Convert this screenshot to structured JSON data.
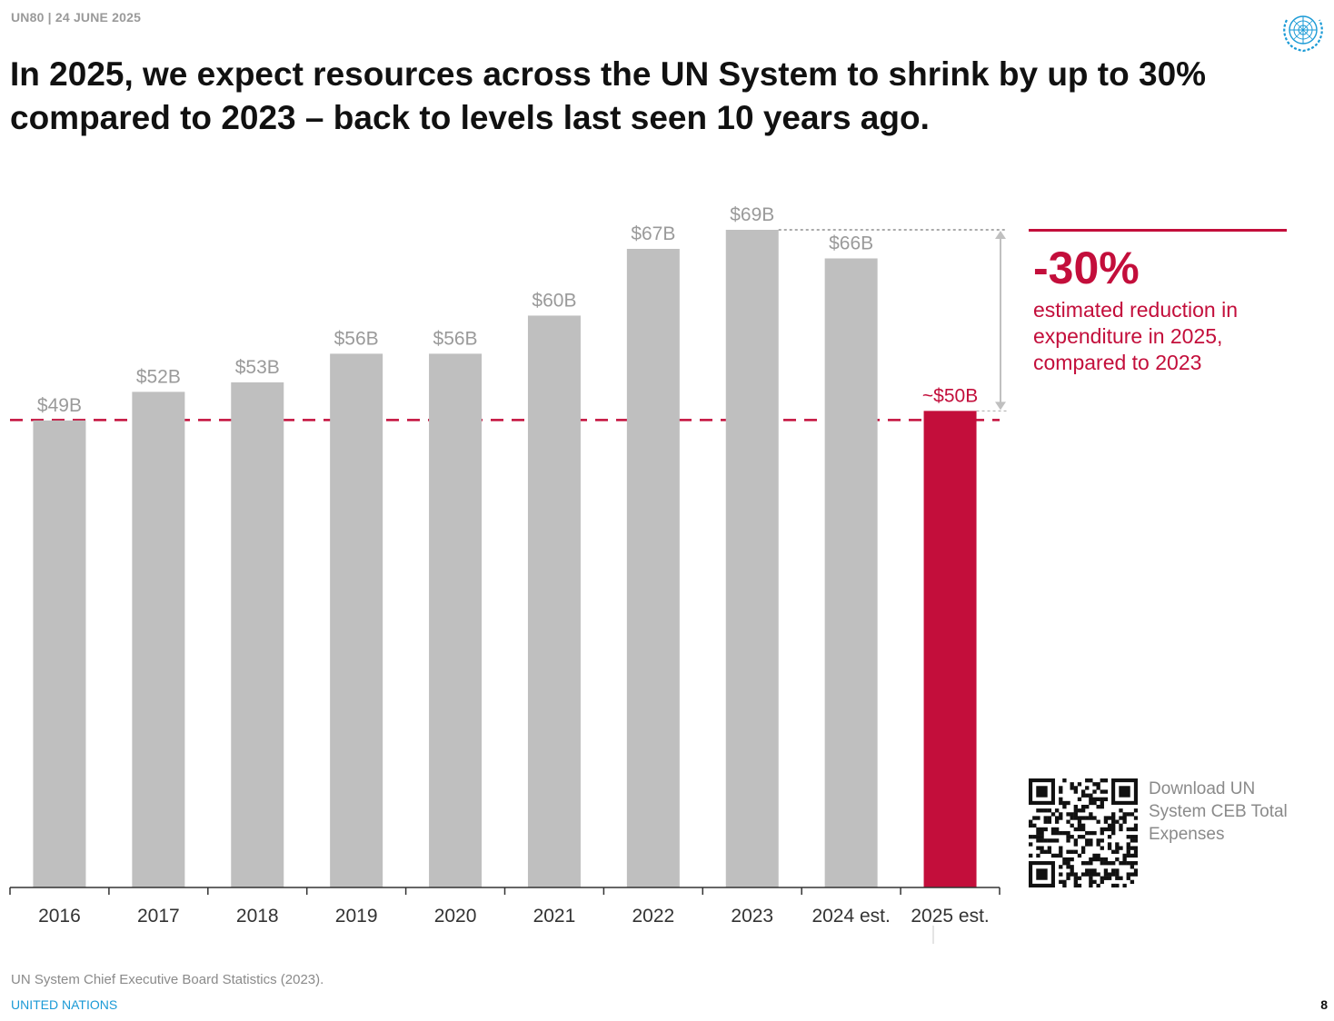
{
  "header": {
    "tag": "UN80 | 24 JUNE 2025"
  },
  "title": "In 2025, we expect resources across the UN System to shrink by up to 30% compared to 2023 – back to levels last seen 10 years ago.",
  "chart_data": {
    "type": "bar",
    "title": "",
    "xlabel": "",
    "ylabel": "",
    "categories": [
      "2016",
      "2017",
      "2018",
      "2019",
      "2020",
      "2021",
      "2022",
      "2023",
      "2024 est.",
      "2025 est."
    ],
    "values": [
      49,
      52,
      53,
      56,
      56,
      60,
      67,
      69,
      66,
      50
    ],
    "value_labels": [
      "$49B",
      "$52B",
      "$53B",
      "$56B",
      "$56B",
      "$60B",
      "$67B",
      "$69B",
      "$66B",
      "~$50B"
    ],
    "unit": "USD billions",
    "highlight_index": 9,
    "reference_line_value": 50,
    "ylim": [
      0,
      69
    ],
    "grid": false,
    "colors": {
      "bar": "#bfbfbf",
      "highlight": "#c30e3b",
      "label": "#9a9a9a",
      "axis": "#333333"
    }
  },
  "callout": {
    "value": "-30%",
    "text": "estimated reduction in expenditure in 2025, compared to 2023",
    "color": "#c30e3b"
  },
  "qr": {
    "caption": "Download UN System CEB Total Expenses"
  },
  "footer": {
    "source": "UN System Chief Executive Board Statistics (2023).",
    "org": "UNITED NATIONS",
    "page": "8"
  }
}
